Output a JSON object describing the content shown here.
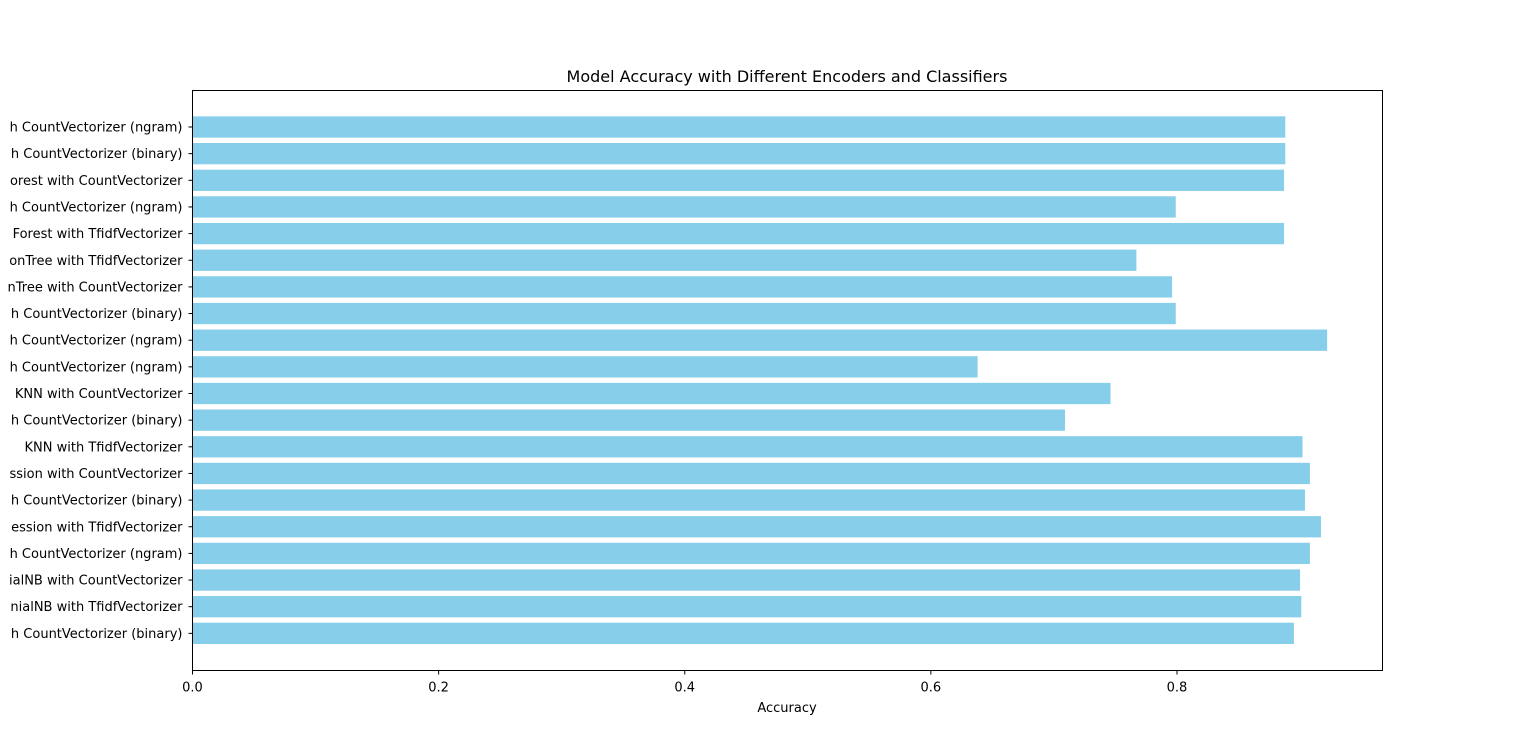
{
  "chart_data": {
    "type": "bar",
    "orientation": "horizontal",
    "title": "Model Accuracy with Different Encoders and Classifiers",
    "xlabel": "Accuracy",
    "ylabel": "",
    "xlim": [
      0,
      0.967
    ],
    "xticks": [
      "0.0",
      "0.2",
      "0.4",
      "0.6",
      "0.8"
    ],
    "grid": false,
    "bar_color": "#87ceeb",
    "categories": [
      "h CountVectorizer (ngram)",
      "h CountVectorizer (binary)",
      "orest with CountVectorizer",
      "h CountVectorizer (ngram)",
      "Forest with TfidfVectorizer",
      "onTree with TfidfVectorizer",
      "nTree with CountVectorizer",
      "h CountVectorizer (binary)",
      "h CountVectorizer (ngram)",
      "h CountVectorizer (ngram)",
      "KNN with CountVectorizer",
      "h CountVectorizer (binary)",
      "KNN with TfidfVectorizer",
      "ssion with CountVectorizer",
      "h CountVectorizer (binary)",
      "ession with TfidfVectorizer",
      "h CountVectorizer (ngram)",
      "ialNB with CountVectorizer",
      "nialNB with TfidfVectorizer",
      "h CountVectorizer (binary)"
    ],
    "values": [
      0.888,
      0.888,
      0.887,
      0.799,
      0.887,
      0.767,
      0.796,
      0.799,
      0.922,
      0.638,
      0.746,
      0.709,
      0.902,
      0.908,
      0.904,
      0.917,
      0.908,
      0.9,
      0.901,
      0.895
    ]
  }
}
